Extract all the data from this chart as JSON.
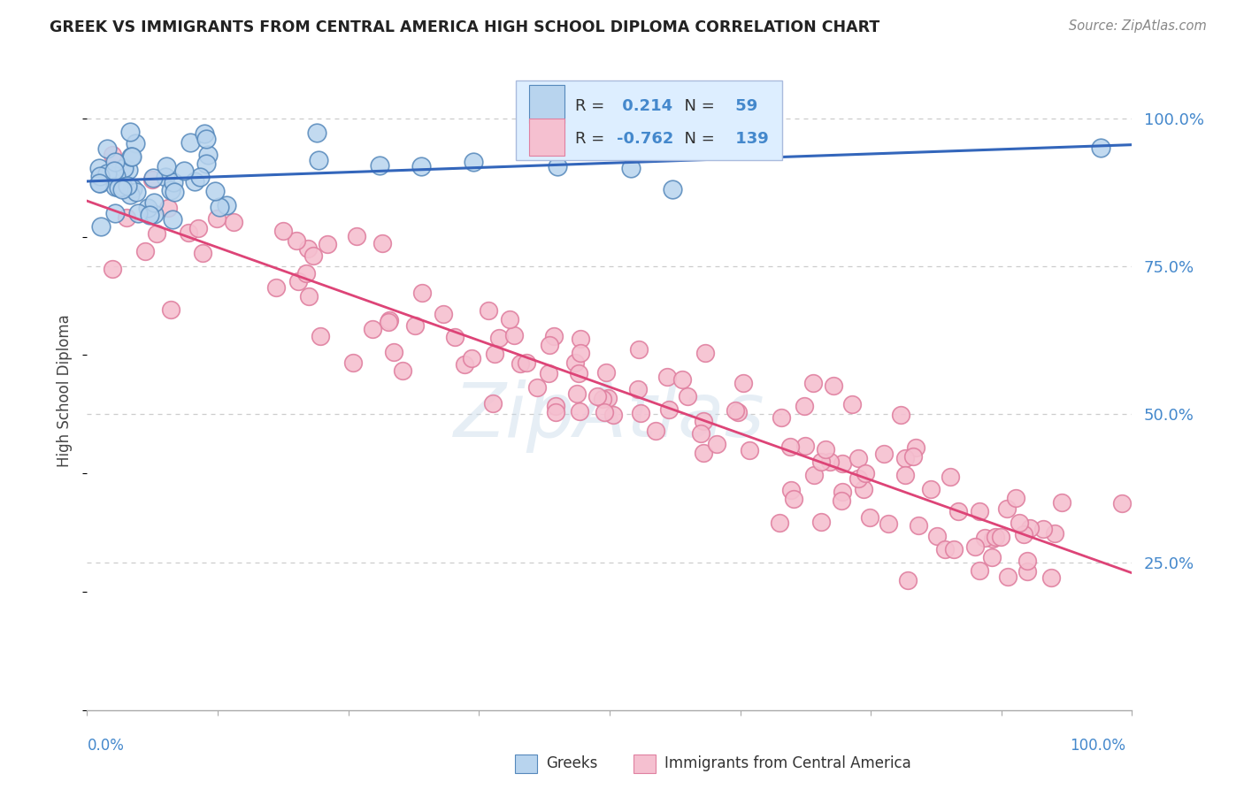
{
  "title": "GREEK VS IMMIGRANTS FROM CENTRAL AMERICA HIGH SCHOOL DIPLOMA CORRELATION CHART",
  "source": "Source: ZipAtlas.com",
  "ylabel": "High School Diploma",
  "y_tick_labels": [
    "25.0%",
    "50.0%",
    "75.0%",
    "100.0%"
  ],
  "y_ticks": [
    0.25,
    0.5,
    0.75,
    1.0
  ],
  "legend_labels": [
    "Greeks",
    "Immigrants from Central America"
  ],
  "greek_color": "#b8d4ee",
  "greek_edge_color": "#5588bb",
  "immigrant_color": "#f5c0d0",
  "immigrant_edge_color": "#e080a0",
  "trend_greek_color": "#3366bb",
  "trend_immigrant_color": "#dd4477",
  "greek_R": 0.214,
  "greek_N": 59,
  "immigrant_R": -0.762,
  "immigrant_N": 139,
  "legend_box_facecolor": "#ddeeff",
  "legend_box_edgecolor": "#aabbdd",
  "watermark_color": "#c8daea",
  "background_color": "#ffffff",
  "grid_color": "#cccccc",
  "axis_color": "#aaaaaa",
  "right_tick_color": "#4488cc",
  "xlabel_color": "#4488cc",
  "title_color": "#222222",
  "source_color": "#888888"
}
